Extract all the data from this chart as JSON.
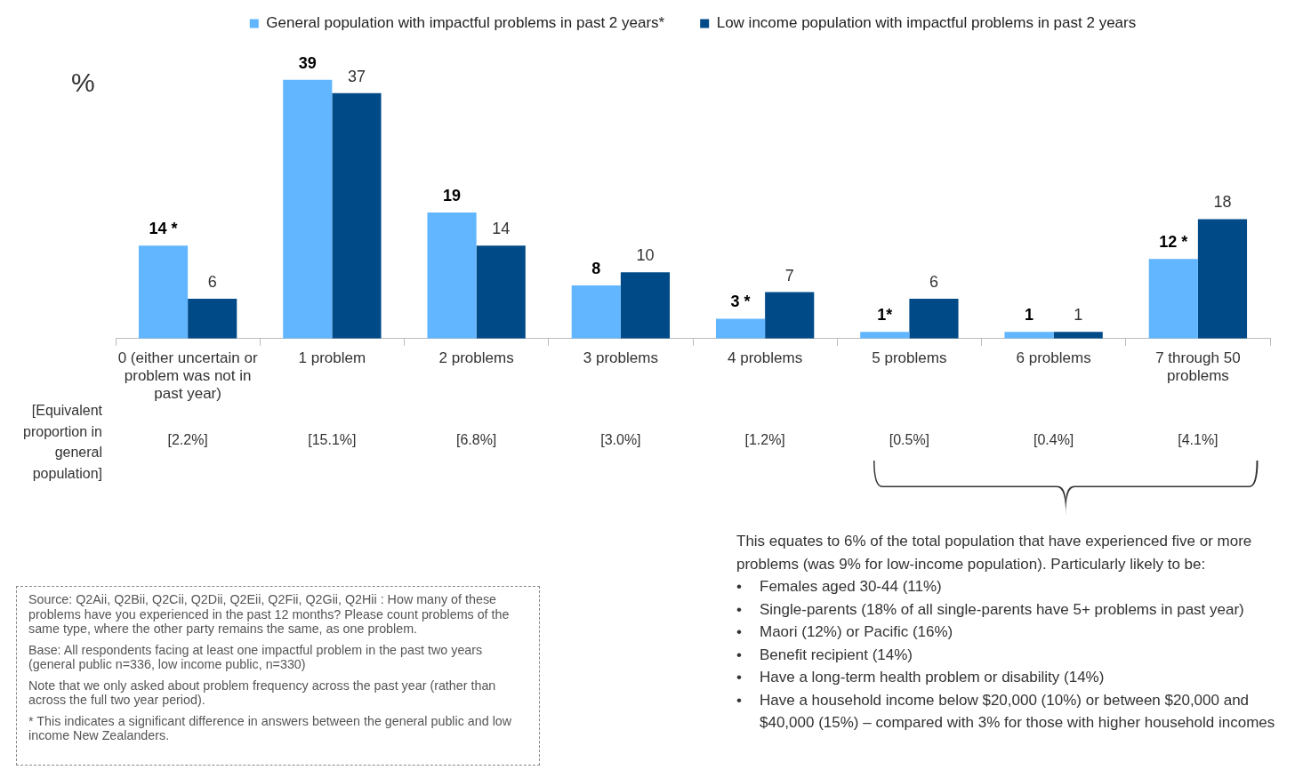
{
  "chart_data": {
    "type": "bar",
    "ylabel": "%",
    "legend": "top",
    "tick_labels": "x",
    "data_labels": true,
    "categories": [
      "0 (either uncertain or problem was not in past year)",
      "1 problem",
      "2 problems",
      "3 problems",
      "4 problems",
      "5 problems",
      "6 problems",
      "7 through 50 problems"
    ],
    "series": [
      {
        "name": "General population with impactful problems in past 2 years*",
        "color": "#61b6ff",
        "values": [
          14,
          39,
          19,
          8,
          3,
          1,
          1,
          12
        ],
        "value_labels": [
          "14 *",
          "39",
          "19",
          "8",
          "3 *",
          "1*",
          "1",
          "12 *"
        ]
      },
      {
        "name": "Low income population with impactful problems in past 2 years",
        "color": "#004a87",
        "values": [
          6,
          37,
          14,
          10,
          7,
          6,
          1,
          18
        ],
        "value_labels": [
          "6",
          "37",
          "14",
          "10",
          "7",
          "6",
          "1",
          "18"
        ]
      }
    ],
    "annotations": [
      "[Equivalent proportion in general population]",
      "[2.2%]",
      "[15.1%]",
      "[6.8%]",
      "[3.0%]",
      "[1.2%]",
      "[0.5%]",
      "[0.4%]",
      "[4.1%]",
      "This equates to 6% of the total population that have experienced five or more problems (was 9% for low-income population). Particularly likely to be:\n•\tFemales aged 30-44 (11%)\n•\tSingle-parents (18% of all single-parents have 5+ problems in past year)\n•\tMaori (12%) or Pacific (16%)\n•\tBenefit recipient (14%)\n•\tHave a long-term health problem or disability (14%)\n•\tHave a household income below $20,000 (10%) or between $20,000 and $40,000 (15%) – compared with 3% for those with higher household incomes",
      "Source: Q2Aii, Q2Bii, Q2Cii, Q2Dii, Q2Eii, Q2Fii, Q2Gii, Q2Hii : How many of these problems have you experienced in the past 12 months?  Please count problems of the same type, where the other party remains the same, as one problem.",
      "Base: All respondents facing at least one impactful problem in the past two years (general public n=336, low income public, n=330)",
      "Note that we only asked about problem frequency across the past year (rather than across the full two year period).",
      "* This indicates a significant difference in answers between the general public and low income New Zealanders."
    ]
  }
}
